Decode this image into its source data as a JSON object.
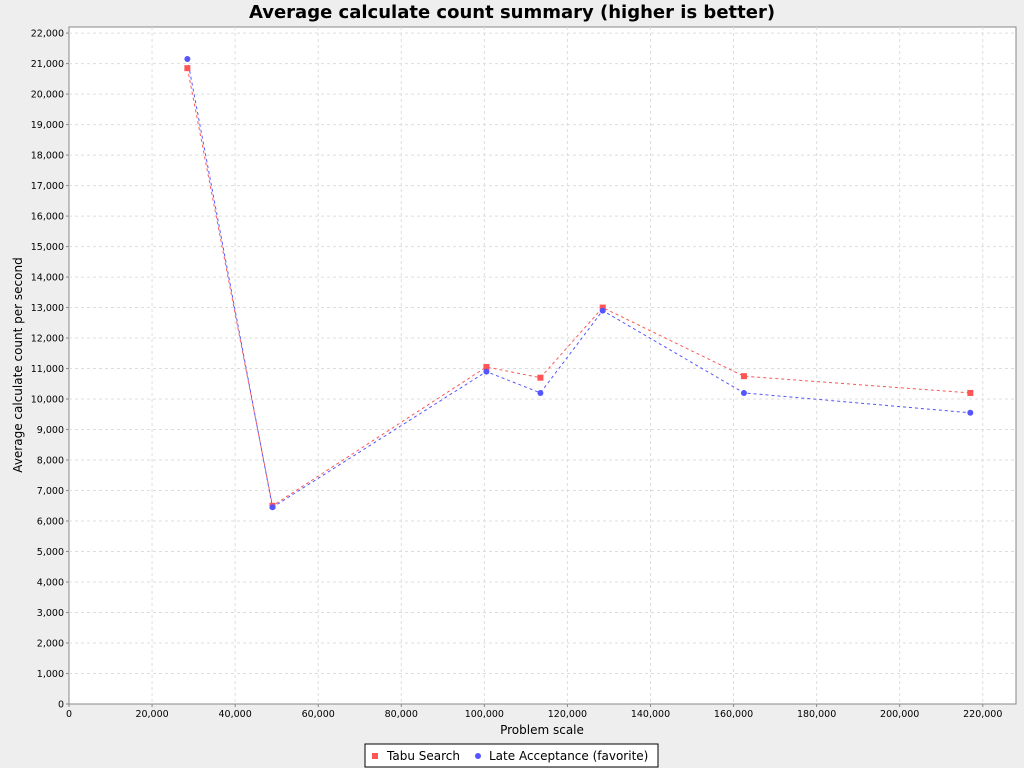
{
  "chart_data": {
    "type": "line",
    "title": "Average calculate count summary (higher is better)",
    "xlabel": "Problem scale",
    "ylabel": "Average calculate count per second",
    "xlim": [
      0,
      228000
    ],
    "ylim": [
      0,
      22200
    ],
    "x_ticks": [
      0,
      20000,
      40000,
      60000,
      80000,
      100000,
      120000,
      140000,
      160000,
      180000,
      200000,
      220000
    ],
    "x_tick_labels": [
      "0",
      "20,000",
      "40,000",
      "60,000",
      "80,000",
      "100,000",
      "120,000",
      "140,000",
      "160,000",
      "180,000",
      "200,000",
      "220,000"
    ],
    "y_ticks": [
      0,
      1000,
      2000,
      3000,
      4000,
      5000,
      6000,
      7000,
      8000,
      9000,
      10000,
      11000,
      12000,
      13000,
      14000,
      15000,
      16000,
      17000,
      18000,
      19000,
      20000,
      21000,
      22000
    ],
    "y_tick_labels": [
      "0",
      "1,000",
      "2,000",
      "3,000",
      "4,000",
      "5,000",
      "6,000",
      "7,000",
      "8,000",
      "9,000",
      "10,000",
      "11,000",
      "12,000",
      "13,000",
      "14,000",
      "15,000",
      "16,000",
      "17,000",
      "18,000",
      "19,000",
      "20,000",
      "21,000",
      "22,000"
    ],
    "grid": true,
    "legend_position": "bottom",
    "series": [
      {
        "name": "Tabu Search",
        "marker": "square",
        "color": "#ff5555",
        "x": [
          28500,
          49000,
          100500,
          113500,
          128500,
          162500,
          217000
        ],
        "y": [
          20850,
          6500,
          11050,
          10700,
          13000,
          10750,
          10200
        ]
      },
      {
        "name": "Late Acceptance (favorite)",
        "marker": "circle",
        "color": "#5555ff",
        "x": [
          28500,
          49000,
          100500,
          113500,
          128500,
          162500,
          217000
        ],
        "y": [
          21150,
          6450,
          10900,
          10200,
          12900,
          10200,
          9550
        ]
      }
    ]
  }
}
